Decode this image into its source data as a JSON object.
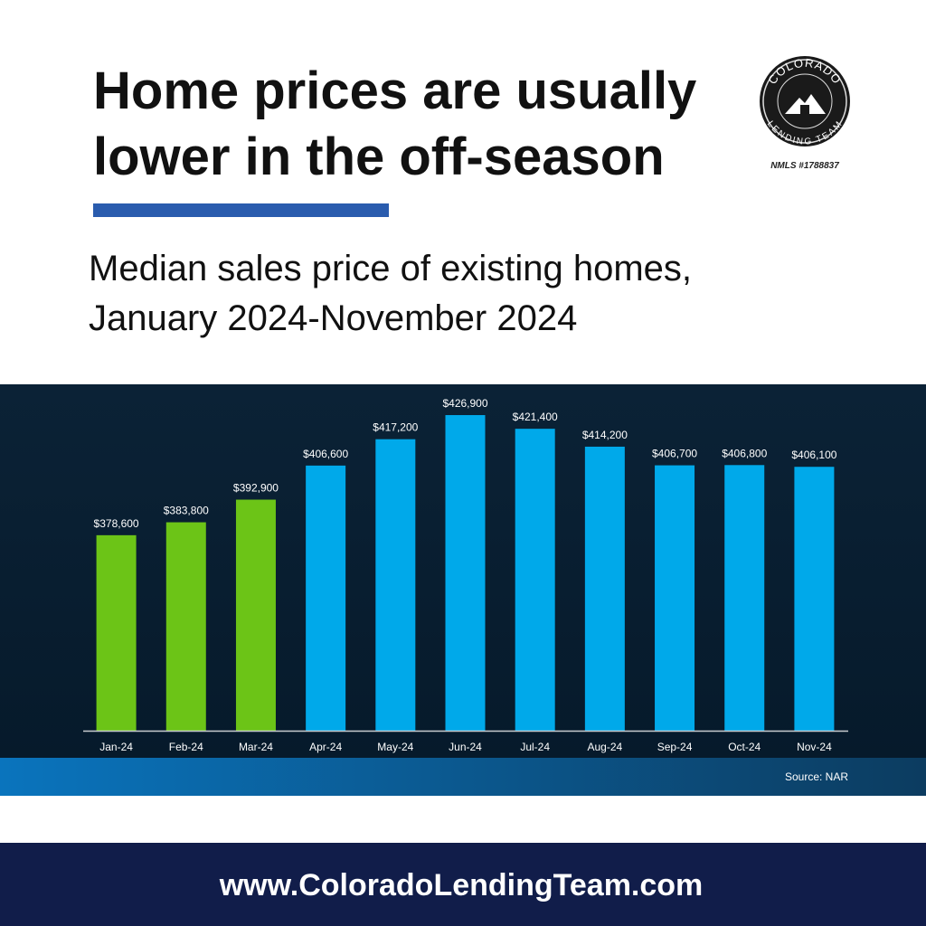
{
  "header": {
    "title_lines": [
      "Home prices are usually",
      "lower in the off-season"
    ],
    "subtitle_lines": [
      "Median sales price of existing homes,",
      "January 2024-November 2024"
    ]
  },
  "logo": {
    "top_text": "COLORADO",
    "bottom_text": "LENDING TEAM",
    "nmls": "NMLS #1788837"
  },
  "chart_data": {
    "type": "bar",
    "categories": [
      "Jan-24",
      "Feb-24",
      "Mar-24",
      "Apr-24",
      "May-24",
      "Jun-24",
      "Jul-24",
      "Aug-24",
      "Sep-24",
      "Oct-24",
      "Nov-24"
    ],
    "values": [
      378600,
      383800,
      392900,
      406600,
      417200,
      426900,
      421400,
      414200,
      406700,
      406800,
      406100
    ],
    "value_labels": [
      "$378,600",
      "$383,800",
      "$392,900",
      "$406,600",
      "$417,200",
      "$426,900",
      "$421,400",
      "$414,200",
      "$406,700",
      "$406,800",
      "$406,100"
    ],
    "colors": [
      "#6cc417",
      "#6cc417",
      "#6cc417",
      "#00a9ea",
      "#00a9ea",
      "#00a9ea",
      "#00a9ea",
      "#00a9ea",
      "#00a9ea",
      "#00a9ea",
      "#00a9ea"
    ],
    "ylim": [
      300000,
      440000
    ],
    "source": "Source: NAR"
  },
  "footer": {
    "url": "www.ColoradoLendingTeam.com"
  }
}
